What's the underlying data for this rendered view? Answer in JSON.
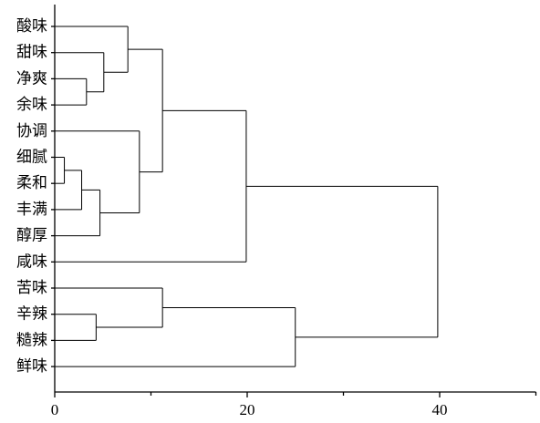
{
  "chart_data": {
    "type": "dendrogram",
    "orientation": "horizontal",
    "leaves": [
      "酸味",
      "甜味",
      "净爽",
      "余味",
      "协调",
      "细腻",
      "柔和",
      "丰满",
      "醇厚",
      "咸味",
      "苦味",
      "辛辣",
      "糙辣",
      "鲜味"
    ],
    "x_ticks": [
      "0",
      "20",
      "40"
    ],
    "x_tick_values": [
      0,
      20,
      40
    ],
    "xlim": [
      0,
      50
    ],
    "merges": [
      {
        "a": "细腻",
        "b": "柔和",
        "height": 1.0
      },
      {
        "a": "[细腻,柔和]",
        "b": "丰满",
        "height": 2.8
      },
      {
        "a": "净爽",
        "b": "余味",
        "height": 3.3
      },
      {
        "a": "辛辣",
        "b": "糙辣",
        "height": 4.3
      },
      {
        "a": "[细腻,柔和,丰满]",
        "b": "醇厚",
        "height": 4.7
      },
      {
        "a": "甜味",
        "b": "[净爽,余味]",
        "height": 5.1
      },
      {
        "a": "酸味",
        "b": "[甜味,净爽,余味]",
        "height": 7.6
      },
      {
        "a": "协调",
        "b": "[细腻,柔和,丰满,醇厚]",
        "height": 8.8
      },
      {
        "a": "[酸味,甜味,净爽,余味]",
        "b": "[协调,细腻,柔和,丰满,醇厚]",
        "height": 11.2
      },
      {
        "a": "苦味",
        "b": "[辛辣,糙辣]",
        "height": 11.2
      },
      {
        "a": "[酸味…醇厚]",
        "b": "咸味",
        "height": 19.9
      },
      {
        "a": "[苦味,辛辣,糙辣]",
        "b": "鲜味",
        "height": 25.0
      },
      {
        "a": "[酸味…咸味]",
        "b": "[苦味…鲜味]",
        "height": 39.8
      }
    ],
    "tree": {
      "h": 39.8,
      "c": [
        {
          "h": 19.9,
          "c": [
            {
              "h": 11.2,
              "c": [
                {
                  "h": 7.6,
                  "c": [
                    {
                      "leaf": "酸味"
                    },
                    {
                      "h": 5.1,
                      "c": [
                        {
                          "leaf": "甜味"
                        },
                        {
                          "h": 3.3,
                          "c": [
                            {
                              "leaf": "净爽"
                            },
                            {
                              "leaf": "余味"
                            }
                          ]
                        }
                      ]
                    }
                  ]
                },
                {
                  "h": 8.8,
                  "c": [
                    {
                      "leaf": "协调"
                    },
                    {
                      "h": 4.7,
                      "c": [
                        {
                          "h": 2.8,
                          "c": [
                            {
                              "h": 1.0,
                              "c": [
                                {
                                  "leaf": "细腻"
                                },
                                {
                                  "leaf": "柔和"
                                }
                              ]
                            },
                            {
                              "leaf": "丰满"
                            }
                          ]
                        },
                        {
                          "leaf": "醇厚"
                        }
                      ]
                    }
                  ]
                }
              ]
            },
            {
              "leaf": "咸味"
            }
          ]
        },
        {
          "h": 25.0,
          "c": [
            {
              "h": 11.2,
              "c": [
                {
                  "leaf": "苦味"
                },
                {
                  "h": 4.3,
                  "c": [
                    {
                      "leaf": "辛辣"
                    },
                    {
                      "leaf": "糙辣"
                    }
                  ]
                }
              ]
            },
            {
              "leaf": "鲜味"
            }
          ]
        }
      ]
    }
  }
}
